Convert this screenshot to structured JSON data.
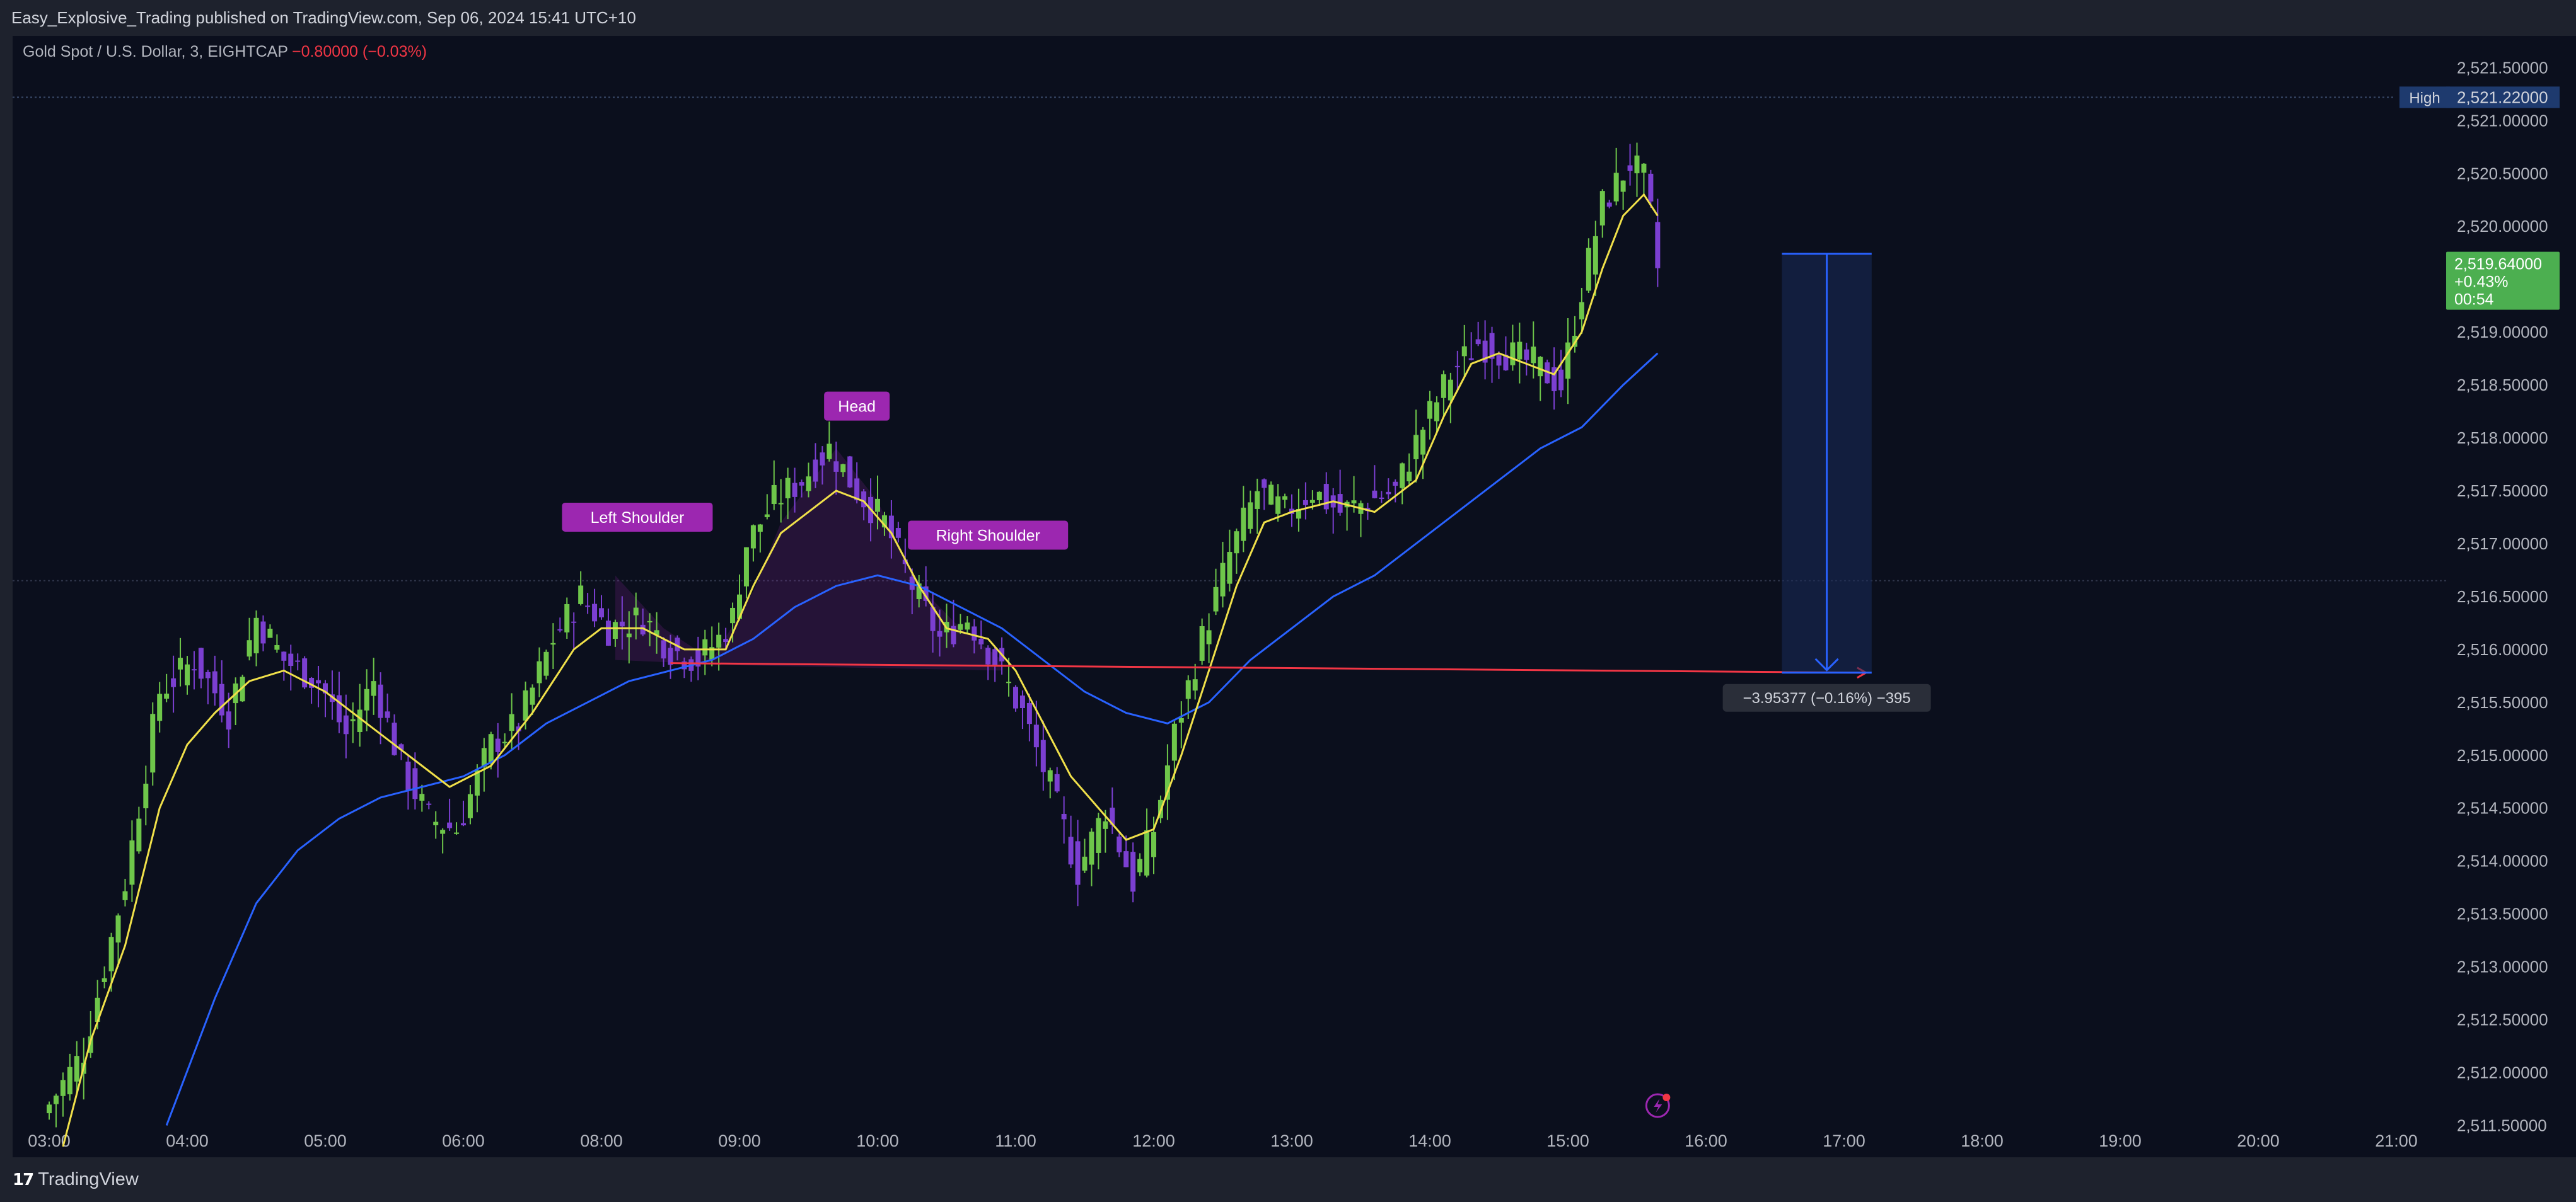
{
  "header": {
    "published_line": "Easy_Explosive_Trading published on TradingView.com, Sep 06, 2024 15:41 UTC+10"
  },
  "legend": {
    "symbol": "Gold Spot / U.S. Dollar, 3, EIGHTCAP",
    "change": "−0.80000 (−0.03%)"
  },
  "footer": {
    "brand": "TradingView",
    "logo_icon": "tradingview-logo-icon"
  },
  "colors": {
    "background": "#0b0f1d",
    "bull": "#6ec64a",
    "bear": "#7b3fd1",
    "ema_fast": "#f0e04a",
    "ema_slow": "#2962ff",
    "pattern": "#9c27b0",
    "neckline": "#f23645",
    "last_price": "#4caf50",
    "high_label": "#1e3a6e"
  },
  "chart_data": {
    "type": "candlestick",
    "symbol": "Gold Spot / U.S. Dollar",
    "interval": "3",
    "exchange": "EIGHTCAP",
    "x_ticks": [
      "03:00",
      "04:00",
      "05:00",
      "06:00",
      "08:00",
      "09:00",
      "10:00",
      "11:00",
      "12:00",
      "13:00",
      "14:00",
      "15:00",
      "16:00",
      "17:00",
      "18:00",
      "19:00",
      "20:00",
      "21:00"
    ],
    "x_tick_hours": [
      3,
      4,
      5,
      6,
      7,
      8,
      9,
      10,
      11,
      12,
      13,
      14,
      15,
      16,
      17,
      18,
      19,
      20
    ],
    "y_ticks": [
      "2,511.50000",
      "2,512.00000",
      "2,512.50000",
      "2,513.00000",
      "2,513.50000",
      "2,514.00000",
      "2,514.50000",
      "2,515.00000",
      "2,515.50000",
      "2,516.00000",
      "2,516.50000",
      "2,517.00000",
      "2,517.50000",
      "2,518.00000",
      "2,518.50000",
      "2,519.00000",
      "2,519.50000",
      "2,520.00000",
      "2,520.50000",
      "2,521.00000",
      "2,521.50000"
    ],
    "ylim": [
      2511.3,
      2521.8
    ],
    "price_path": [
      [
        3.0,
        2511.6
      ],
      [
        3.3,
        2512.2
      ],
      [
        3.6,
        2513.8
      ],
      [
        3.85,
        2515.6
      ],
      [
        4.1,
        2515.9
      ],
      [
        4.35,
        2515.4
      ],
      [
        4.55,
        2516.3
      ],
      [
        4.75,
        2515.9
      ],
      [
        5.0,
        2515.7
      ],
      [
        5.2,
        2515.2
      ],
      [
        5.4,
        2515.7
      ],
      [
        5.6,
        2514.9
      ],
      [
        5.8,
        2514.4
      ],
      [
        6.0,
        2514.3
      ],
      [
        6.25,
        2515.1
      ],
      [
        6.45,
        2515.3
      ],
      [
        6.7,
        2516.1
      ],
      [
        6.9,
        2516.5
      ],
      [
        7.1,
        2516.2
      ],
      [
        7.35,
        2516.3
      ],
      [
        7.55,
        2516.0
      ],
      [
        7.75,
        2515.9
      ],
      [
        7.9,
        2516.1
      ],
      [
        8.0,
        2516.3
      ],
      [
        8.1,
        2517.0
      ],
      [
        8.3,
        2517.4
      ],
      [
        8.5,
        2517.6
      ],
      [
        8.7,
        2517.9
      ],
      [
        8.9,
        2517.5
      ],
      [
        9.1,
        2517.2
      ],
      [
        9.3,
        2516.6
      ],
      [
        9.5,
        2516.1
      ],
      [
        9.7,
        2516.3
      ],
      [
        9.9,
        2515.9
      ],
      [
        10.1,
        2515.4
      ],
      [
        10.3,
        2514.7
      ],
      [
        10.5,
        2513.9
      ],
      [
        10.7,
        2514.5
      ],
      [
        10.9,
        2513.8
      ],
      [
        11.05,
        2514.3
      ],
      [
        11.2,
        2515.2
      ],
      [
        11.4,
        2516.1
      ],
      [
        11.6,
        2516.9
      ],
      [
        11.8,
        2517.5
      ],
      [
        12.0,
        2517.3
      ],
      [
        12.2,
        2517.5
      ],
      [
        12.4,
        2517.3
      ],
      [
        12.6,
        2517.4
      ],
      [
        12.8,
        2517.5
      ],
      [
        13.0,
        2518.1
      ],
      [
        13.2,
        2518.6
      ],
      [
        13.4,
        2518.9
      ],
      [
        13.6,
        2518.8
      ],
      [
        13.8,
        2518.7
      ],
      [
        14.0,
        2518.5
      ],
      [
        14.15,
        2519.4
      ],
      [
        14.3,
        2520.2
      ],
      [
        14.5,
        2520.6
      ],
      [
        14.62,
        2520.4
      ],
      [
        14.7,
        2519.6
      ]
    ],
    "ema_fast_path": [
      [
        3.1,
        2511.3
      ],
      [
        3.3,
        2512.3
      ],
      [
        3.55,
        2513.2
      ],
      [
        3.8,
        2514.5
      ],
      [
        4.0,
        2515.1
      ],
      [
        4.2,
        2515.4
      ],
      [
        4.45,
        2515.7
      ],
      [
        4.7,
        2515.8
      ],
      [
        5.0,
        2515.6
      ],
      [
        5.3,
        2515.3
      ],
      [
        5.6,
        2515.0
      ],
      [
        5.9,
        2514.7
      ],
      [
        6.2,
        2514.9
      ],
      [
        6.5,
        2515.4
      ],
      [
        6.8,
        2516.0
      ],
      [
        7.0,
        2516.2
      ],
      [
        7.3,
        2516.2
      ],
      [
        7.6,
        2516.0
      ],
      [
        7.9,
        2516.0
      ],
      [
        8.1,
        2516.6
      ],
      [
        8.3,
        2517.1
      ],
      [
        8.5,
        2517.3
      ],
      [
        8.7,
        2517.5
      ],
      [
        8.9,
        2517.4
      ],
      [
        9.1,
        2517.1
      ],
      [
        9.3,
        2516.6
      ],
      [
        9.5,
        2516.2
      ],
      [
        9.8,
        2516.1
      ],
      [
        10.0,
        2515.8
      ],
      [
        10.2,
        2515.3
      ],
      [
        10.4,
        2514.8
      ],
      [
        10.6,
        2514.5
      ],
      [
        10.8,
        2514.2
      ],
      [
        11.0,
        2514.3
      ],
      [
        11.2,
        2515.0
      ],
      [
        11.4,
        2515.8
      ],
      [
        11.6,
        2516.6
      ],
      [
        11.8,
        2517.2
      ],
      [
        12.0,
        2517.3
      ],
      [
        12.3,
        2517.4
      ],
      [
        12.6,
        2517.3
      ],
      [
        12.9,
        2517.6
      ],
      [
        13.1,
        2518.2
      ],
      [
        13.3,
        2518.7
      ],
      [
        13.5,
        2518.8
      ],
      [
        13.7,
        2518.7
      ],
      [
        13.9,
        2518.6
      ],
      [
        14.1,
        2519.0
      ],
      [
        14.25,
        2519.6
      ],
      [
        14.4,
        2520.1
      ],
      [
        14.55,
        2520.3
      ],
      [
        14.65,
        2520.1
      ]
    ],
    "ema_slow_path": [
      [
        3.85,
        2511.5
      ],
      [
        4.2,
        2512.7
      ],
      [
        4.5,
        2513.6
      ],
      [
        4.8,
        2514.1
      ],
      [
        5.1,
        2514.4
      ],
      [
        5.4,
        2514.6
      ],
      [
        5.7,
        2514.7
      ],
      [
        6.0,
        2514.8
      ],
      [
        6.3,
        2515.0
      ],
      [
        6.6,
        2515.3
      ],
      [
        6.9,
        2515.5
      ],
      [
        7.2,
        2515.7
      ],
      [
        7.5,
        2515.8
      ],
      [
        7.8,
        2515.9
      ],
      [
        8.1,
        2516.1
      ],
      [
        8.4,
        2516.4
      ],
      [
        8.7,
        2516.6
      ],
      [
        9.0,
        2516.7
      ],
      [
        9.3,
        2516.6
      ],
      [
        9.6,
        2516.4
      ],
      [
        9.9,
        2516.2
      ],
      [
        10.2,
        2515.9
      ],
      [
        10.5,
        2515.6
      ],
      [
        10.8,
        2515.4
      ],
      [
        11.1,
        2515.3
      ],
      [
        11.4,
        2515.5
      ],
      [
        11.7,
        2515.9
      ],
      [
        12.0,
        2516.2
      ],
      [
        12.3,
        2516.5
      ],
      [
        12.6,
        2516.7
      ],
      [
        12.9,
        2517.0
      ],
      [
        13.2,
        2517.3
      ],
      [
        13.5,
        2517.6
      ],
      [
        13.8,
        2517.9
      ],
      [
        14.1,
        2518.1
      ],
      [
        14.4,
        2518.5
      ],
      [
        14.65,
        2518.8
      ]
    ],
    "pattern": {
      "name": "Head and Shoulders",
      "labels": [
        {
          "text": "Left Shoulder",
          "x": 7.26,
          "y": 2517.25
        },
        {
          "text": "Head",
          "x": 8.85,
          "y": 2518.3
        },
        {
          "text": "Right Shoulder",
          "x": 9.8,
          "y": 2517.08
        }
      ],
      "polygon": [
        [
          7.1,
          2516.7
        ],
        [
          7.45,
          2516.2
        ],
        [
          7.8,
          2515.9
        ],
        [
          8.1,
          2516.55
        ],
        [
          8.3,
          2517.2
        ],
        [
          8.7,
          2517.9
        ],
        [
          9.0,
          2517.4
        ],
        [
          9.3,
          2516.6
        ],
        [
          9.6,
          2516.2
        ],
        [
          9.9,
          2515.9
        ],
        [
          9.9,
          2515.8
        ],
        [
          8.0,
          2515.85
        ],
        [
          7.1,
          2515.9
        ]
      ],
      "neckline": [
        [
          7.5,
          2515.87
        ],
        [
          16.15,
          2515.78
        ]
      ]
    },
    "measure": {
      "from": 2519.74,
      "to": 2515.78,
      "x_range": [
        15.55,
        16.2
      ],
      "label": "−3.95377 (−0.16%) −395"
    },
    "high_line": {
      "label": "High",
      "value": "2,521.22000",
      "y": 2521.22
    },
    "mid_line": {
      "y": 2516.65
    },
    "last_price": {
      "value": "2,519.64000",
      "change": "+0.43%",
      "countdown": "00:54",
      "y": 2519.64
    },
    "alert_icon": "lightning-alert-icon"
  }
}
